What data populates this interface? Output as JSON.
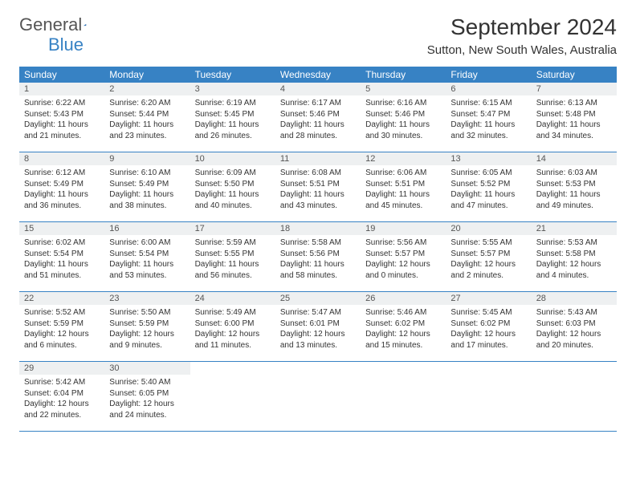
{
  "logo": {
    "text1": "General",
    "text2": "Blue"
  },
  "title": "September 2024",
  "location": "Sutton, New South Wales, Australia",
  "colors": {
    "header_bg": "#3782c4",
    "header_text": "#ffffff",
    "daynum_bg": "#eef0f1",
    "border": "#3782c4",
    "body_text": "#333333"
  },
  "weekdays": [
    "Sunday",
    "Monday",
    "Tuesday",
    "Wednesday",
    "Thursday",
    "Friday",
    "Saturday"
  ],
  "weeks": [
    [
      {
        "n": "1",
        "sr": "6:22 AM",
        "ss": "5:43 PM",
        "dl": "11 hours and 21 minutes."
      },
      {
        "n": "2",
        "sr": "6:20 AM",
        "ss": "5:44 PM",
        "dl": "11 hours and 23 minutes."
      },
      {
        "n": "3",
        "sr": "6:19 AM",
        "ss": "5:45 PM",
        "dl": "11 hours and 26 minutes."
      },
      {
        "n": "4",
        "sr": "6:17 AM",
        "ss": "5:46 PM",
        "dl": "11 hours and 28 minutes."
      },
      {
        "n": "5",
        "sr": "6:16 AM",
        "ss": "5:46 PM",
        "dl": "11 hours and 30 minutes."
      },
      {
        "n": "6",
        "sr": "6:15 AM",
        "ss": "5:47 PM",
        "dl": "11 hours and 32 minutes."
      },
      {
        "n": "7",
        "sr": "6:13 AM",
        "ss": "5:48 PM",
        "dl": "11 hours and 34 minutes."
      }
    ],
    [
      {
        "n": "8",
        "sr": "6:12 AM",
        "ss": "5:49 PM",
        "dl": "11 hours and 36 minutes."
      },
      {
        "n": "9",
        "sr": "6:10 AM",
        "ss": "5:49 PM",
        "dl": "11 hours and 38 minutes."
      },
      {
        "n": "10",
        "sr": "6:09 AM",
        "ss": "5:50 PM",
        "dl": "11 hours and 40 minutes."
      },
      {
        "n": "11",
        "sr": "6:08 AM",
        "ss": "5:51 PM",
        "dl": "11 hours and 43 minutes."
      },
      {
        "n": "12",
        "sr": "6:06 AM",
        "ss": "5:51 PM",
        "dl": "11 hours and 45 minutes."
      },
      {
        "n": "13",
        "sr": "6:05 AM",
        "ss": "5:52 PM",
        "dl": "11 hours and 47 minutes."
      },
      {
        "n": "14",
        "sr": "6:03 AM",
        "ss": "5:53 PM",
        "dl": "11 hours and 49 minutes."
      }
    ],
    [
      {
        "n": "15",
        "sr": "6:02 AM",
        "ss": "5:54 PM",
        "dl": "11 hours and 51 minutes."
      },
      {
        "n": "16",
        "sr": "6:00 AM",
        "ss": "5:54 PM",
        "dl": "11 hours and 53 minutes."
      },
      {
        "n": "17",
        "sr": "5:59 AM",
        "ss": "5:55 PM",
        "dl": "11 hours and 56 minutes."
      },
      {
        "n": "18",
        "sr": "5:58 AM",
        "ss": "5:56 PM",
        "dl": "11 hours and 58 minutes."
      },
      {
        "n": "19",
        "sr": "5:56 AM",
        "ss": "5:57 PM",
        "dl": "12 hours and 0 minutes."
      },
      {
        "n": "20",
        "sr": "5:55 AM",
        "ss": "5:57 PM",
        "dl": "12 hours and 2 minutes."
      },
      {
        "n": "21",
        "sr": "5:53 AM",
        "ss": "5:58 PM",
        "dl": "12 hours and 4 minutes."
      }
    ],
    [
      {
        "n": "22",
        "sr": "5:52 AM",
        "ss": "5:59 PM",
        "dl": "12 hours and 6 minutes."
      },
      {
        "n": "23",
        "sr": "5:50 AM",
        "ss": "5:59 PM",
        "dl": "12 hours and 9 minutes."
      },
      {
        "n": "24",
        "sr": "5:49 AM",
        "ss": "6:00 PM",
        "dl": "12 hours and 11 minutes."
      },
      {
        "n": "25",
        "sr": "5:47 AM",
        "ss": "6:01 PM",
        "dl": "12 hours and 13 minutes."
      },
      {
        "n": "26",
        "sr": "5:46 AM",
        "ss": "6:02 PM",
        "dl": "12 hours and 15 minutes."
      },
      {
        "n": "27",
        "sr": "5:45 AM",
        "ss": "6:02 PM",
        "dl": "12 hours and 17 minutes."
      },
      {
        "n": "28",
        "sr": "5:43 AM",
        "ss": "6:03 PM",
        "dl": "12 hours and 20 minutes."
      }
    ],
    [
      {
        "n": "29",
        "sr": "5:42 AM",
        "ss": "6:04 PM",
        "dl": "12 hours and 22 minutes."
      },
      {
        "n": "30",
        "sr": "5:40 AM",
        "ss": "6:05 PM",
        "dl": "12 hours and 24 minutes."
      },
      null,
      null,
      null,
      null,
      null
    ]
  ],
  "labels": {
    "sunrise": "Sunrise:",
    "sunset": "Sunset:",
    "daylight": "Daylight:"
  }
}
